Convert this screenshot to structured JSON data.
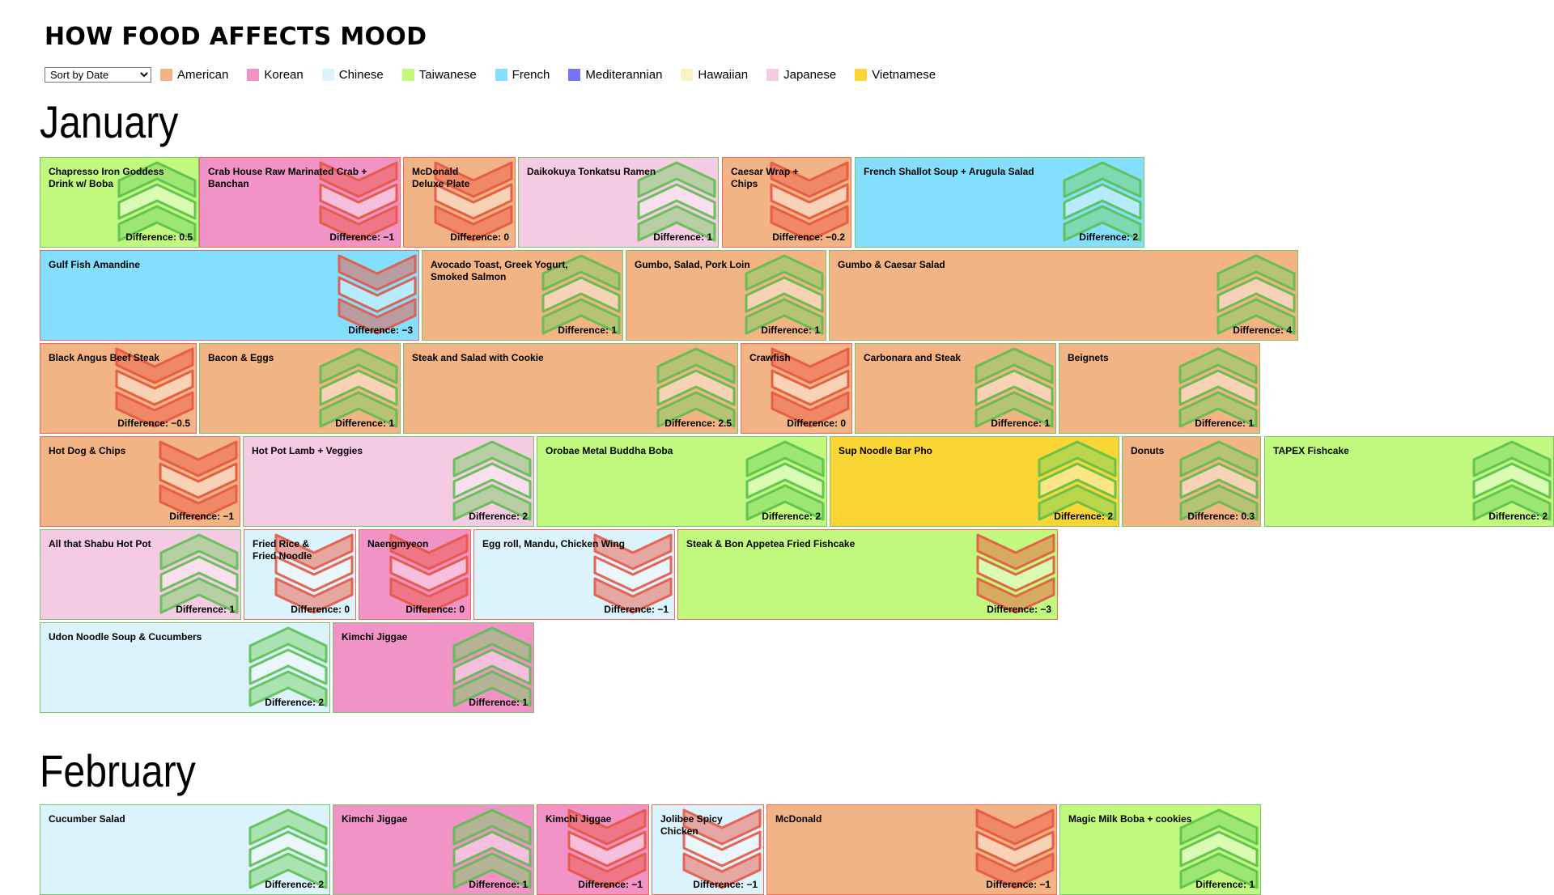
{
  "title": "HOW FOOD AFFECTS MOOD",
  "sort": {
    "selected": "Sort by Date",
    "options": [
      "Sort by Date"
    ]
  },
  "cuisines": [
    {
      "name": "American",
      "color": "#f2b484"
    },
    {
      "name": "Korean",
      "color": "#f193c6"
    },
    {
      "name": "Chinese",
      "color": "#daf3fc"
    },
    {
      "name": "Taiwanese",
      "color": "#c1f97e"
    },
    {
      "name": "French",
      "color": "#83dffd"
    },
    {
      "name": "Mediterannian",
      "color": "#7474f8"
    },
    {
      "name": "Hawaiian",
      "color": "#fcf1c4"
    },
    {
      "name": "Japanese",
      "color": "#f5cae3"
    },
    {
      "name": "Vietnamese",
      "color": "#fad634"
    }
  ],
  "diff_label": "Difference:",
  "months": [
    {
      "name": "January",
      "rows": [
        [
          {
            "name": "Chapresso Iron Goddess Drink w/ Boba",
            "cuisine": "Taiwanese",
            "difference": 0.5,
            "diff_text": "0.5"
          },
          {
            "name": "Crab House Raw Marinated Crab + Banchan",
            "cuisine": "Korean",
            "difference": -1,
            "diff_text": "−1"
          },
          {
            "name": "McDonald Deluxe Plate",
            "cuisine": "American",
            "difference": 0,
            "diff_text": "0"
          },
          {
            "name": "Daikokuya Tonkatsu Ramen",
            "cuisine": "Japanese",
            "difference": 1,
            "diff_text": "1"
          },
          {
            "name": "Caesar Wrap + Chips",
            "cuisine": "American",
            "difference": -0.2,
            "diff_text": "−0.2"
          },
          {
            "name": "French Shallot Soup + Arugula Salad",
            "cuisine": "French",
            "difference": 2,
            "diff_text": "2"
          }
        ],
        [
          {
            "name": "Gulf Fish Amandine",
            "cuisine": "French",
            "difference": -3,
            "diff_text": "−3"
          },
          {
            "name": "Avocado Toast, Greek Yogurt, Smoked Salmon",
            "cuisine": "American",
            "difference": 1,
            "diff_text": "1"
          },
          {
            "name": "Gumbo, Salad, Pork Loin",
            "cuisine": "American",
            "difference": 1,
            "diff_text": "1"
          },
          {
            "name": "Gumbo & Caesar Salad",
            "cuisine": "American",
            "difference": 4,
            "diff_text": "4"
          }
        ],
        [
          {
            "name": "Black Angus Beef Steak",
            "cuisine": "American",
            "difference": -0.5,
            "diff_text": "−0.5"
          },
          {
            "name": "Bacon & Eggs",
            "cuisine": "American",
            "difference": 1,
            "diff_text": "1"
          },
          {
            "name": "Steak and Salad with Cookie",
            "cuisine": "American",
            "difference": 2.5,
            "diff_text": "2.5"
          },
          {
            "name": "Crawfish",
            "cuisine": "American",
            "difference": 0,
            "diff_text": "0"
          },
          {
            "name": "Carbonara and Steak",
            "cuisine": "American",
            "difference": 1,
            "diff_text": "1"
          },
          {
            "name": "Beignets",
            "cuisine": "American",
            "difference": 1,
            "diff_text": "1"
          }
        ],
        [
          {
            "name": "Hot Dog & Chips",
            "cuisine": "American",
            "difference": -1,
            "diff_text": "−1"
          },
          {
            "name": "Hot Pot Lamb + Veggies",
            "cuisine": "Japanese",
            "difference": 2,
            "diff_text": "2"
          },
          {
            "name": "Orobae Metal Buddha Boba",
            "cuisine": "Taiwanese",
            "difference": 2,
            "diff_text": "2"
          },
          {
            "name": "Sup Noodle Bar Pho",
            "cuisine": "Vietnamese",
            "difference": 2,
            "diff_text": "2"
          },
          {
            "name": "Donuts",
            "cuisine": "American",
            "difference": 0.3,
            "diff_text": "0.3"
          },
          {
            "name": "TAPEX Fishcake",
            "cuisine": "Taiwanese",
            "difference": 2,
            "diff_text": "2"
          }
        ],
        [
          {
            "name": "All that Shabu Hot Pot",
            "cuisine": "Japanese",
            "difference": 1,
            "diff_text": "1"
          },
          {
            "name": "Fried Rice & Fried Noodle",
            "cuisine": "Chinese",
            "difference": 0,
            "diff_text": "0"
          },
          {
            "name": "Naengmyeon",
            "cuisine": "Korean",
            "difference": 0,
            "diff_text": "0"
          },
          {
            "name": "Egg roll, Mandu, Chicken Wing",
            "cuisine": "Chinese",
            "difference": -1,
            "diff_text": "−1"
          },
          {
            "name": "Steak & Bon Appetea Fried Fishcake",
            "cuisine": "Taiwanese",
            "difference": -3,
            "diff_text": "−3"
          }
        ],
        [
          {
            "name": "Udon Noodle Soup & Cucumbers",
            "cuisine": "Chinese",
            "difference": 2,
            "diff_text": "2"
          },
          {
            "name": "Kimchi Jiggae",
            "cuisine": "Korean",
            "difference": 1,
            "diff_text": "1"
          }
        ]
      ]
    },
    {
      "name": "February",
      "rows": [
        [
          {
            "name": "Cucumber Salad",
            "cuisine": "Chinese",
            "difference": 2,
            "diff_text": "2"
          },
          {
            "name": "Kimchi Jiggae",
            "cuisine": "Korean",
            "difference": 1,
            "diff_text": "1"
          },
          {
            "name": "Kimchi Jiggae",
            "cuisine": "Korean",
            "difference": -1,
            "diff_text": "−1"
          },
          {
            "name": "Jolibee Spicy Chicken",
            "cuisine": "Chinese",
            "difference": -1,
            "diff_text": "−1"
          },
          {
            "name": "McDonald",
            "cuisine": "American",
            "difference": -1,
            "diff_text": "−1"
          },
          {
            "name": "Magic Milk Boba + cookies",
            "cuisine": "Taiwanese",
            "difference": 1,
            "diff_text": "1"
          }
        ]
      ]
    }
  ]
}
